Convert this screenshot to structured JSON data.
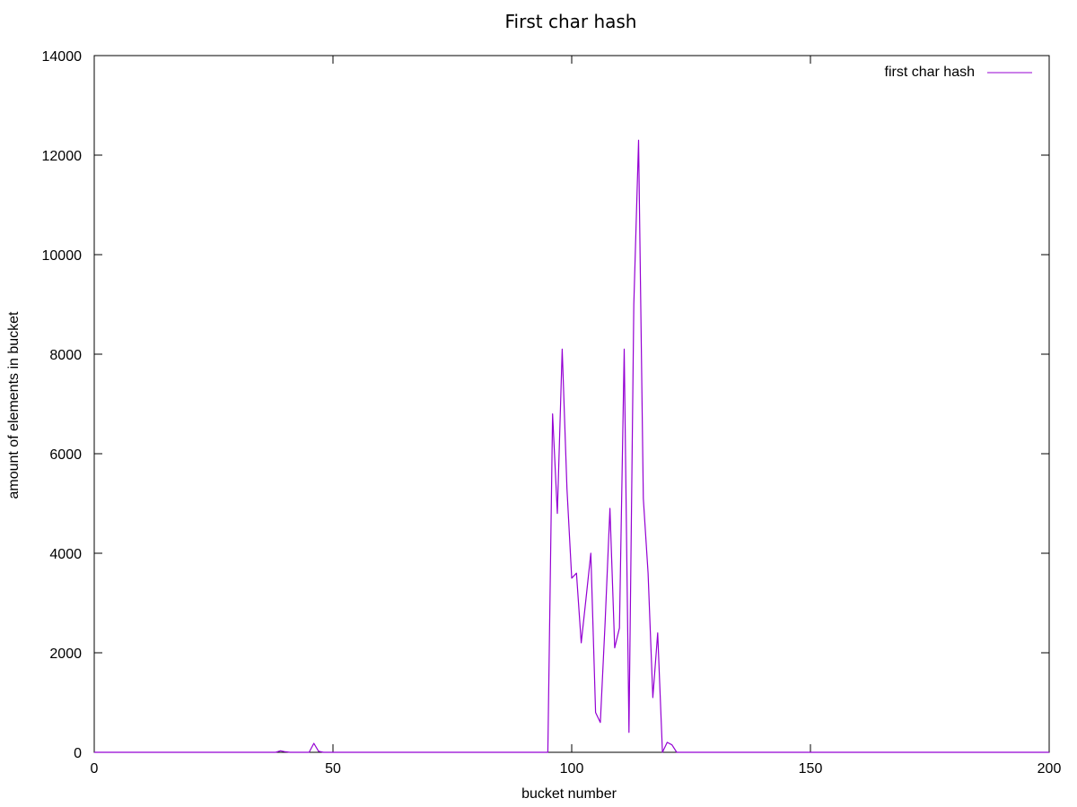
{
  "chart_data": {
    "type": "line",
    "title": "First char hash",
    "xlabel": "bucket number",
    "ylabel": "amount of elements in bucket",
    "xlim": [
      0,
      200
    ],
    "ylim": [
      0,
      14000
    ],
    "x_ticks": [
      0,
      50,
      100,
      150,
      200
    ],
    "y_ticks": [
      0,
      2000,
      4000,
      6000,
      8000,
      10000,
      12000,
      14000
    ],
    "grid": false,
    "legend_position": "top-right",
    "series": [
      {
        "name": "first char hash",
        "color": "#9400d3",
        "x": [
          0,
          38,
          39,
          40,
          41,
          45,
          46,
          47,
          48,
          95,
          96,
          97,
          98,
          99,
          100,
          101,
          102,
          103,
          104,
          105,
          106,
          107,
          108,
          109,
          110,
          111,
          112,
          113,
          114,
          115,
          116,
          117,
          118,
          119,
          120,
          121,
          122,
          123,
          124,
          200
        ],
        "y": [
          0,
          0,
          30,
          10,
          0,
          0,
          180,
          20,
          0,
          0,
          6800,
          4800,
          8100,
          5300,
          3500,
          3600,
          2200,
          3100,
          4000,
          800,
          600,
          2600,
          4900,
          2100,
          2500,
          8100,
          400,
          9000,
          12300,
          5100,
          3600,
          1100,
          2400,
          0,
          200,
          150,
          0,
          0,
          0,
          0
        ]
      }
    ]
  }
}
